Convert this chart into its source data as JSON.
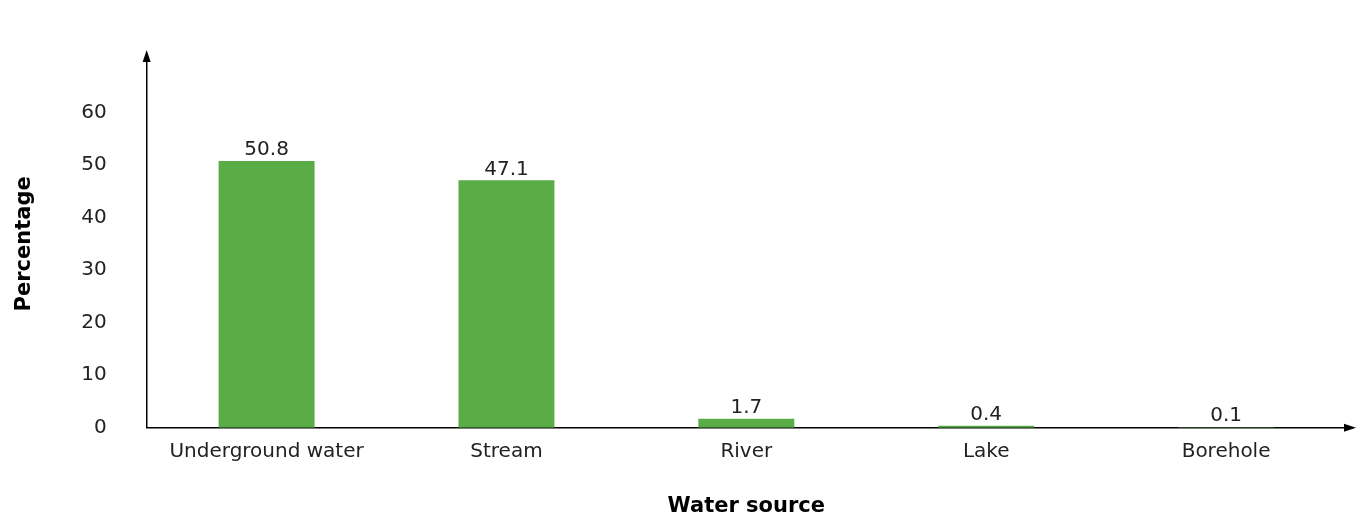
{
  "chart_data": {
    "type": "bar",
    "xlabel": "Water source",
    "ylabel": "Percentage",
    "categories": [
      "Underground water",
      "Stream",
      "River",
      "Lake",
      "Borehole"
    ],
    "values": [
      50.8,
      47.1,
      1.7,
      0.4,
      0.1
    ],
    "color": "#5aac47",
    "ylim": [
      0,
      70
    ],
    "yticks": [
      0,
      10,
      20,
      30,
      40,
      50,
      60
    ],
    "grid": false,
    "data_labels": true
  }
}
